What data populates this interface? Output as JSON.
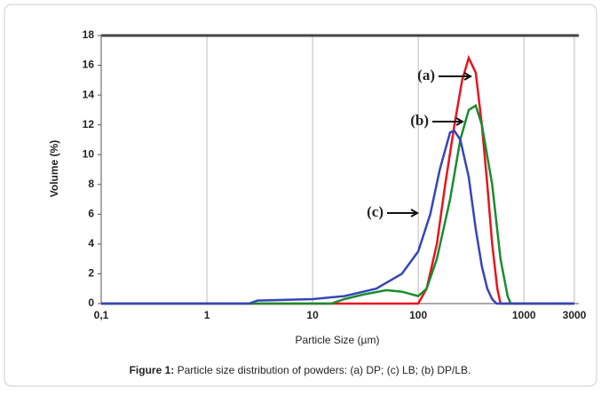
{
  "chart_data": {
    "type": "line",
    "ylabel": "Volume (%)",
    "xlabel": "Particle Size (µm)",
    "caption_label": "Figure 1:",
    "caption": "Particle size distribution of powders: (a) DP; (c) LB; (b) DP/LB.",
    "xscale": "log",
    "xlim": [
      0.1,
      3000
    ],
    "ylim": [
      0,
      18
    ],
    "xticks": [
      {
        "value": 0.1,
        "label": "0,1"
      },
      1,
      10,
      100,
      1000,
      3000
    ],
    "yticks": [
      0,
      2,
      4,
      6,
      8,
      10,
      12,
      14,
      16,
      18
    ],
    "grid": true,
    "series": [
      {
        "name": "(a)",
        "color": "#e8141e",
        "x": [
          0.1,
          100,
          120,
          150,
          180,
          220,
          260,
          300,
          350,
          400,
          450,
          500,
          560,
          600,
          3000
        ],
        "values": [
          0,
          0,
          1,
          4,
          8,
          12,
          15,
          16.5,
          15.5,
          12,
          8,
          4,
          1,
          0,
          0
        ]
      },
      {
        "name": "(b)",
        "color": "#1a8c2e",
        "x": [
          0.1,
          15,
          20,
          30,
          50,
          70,
          100,
          120,
          150,
          200,
          250,
          300,
          350,
          400,
          500,
          600,
          700,
          750,
          3000
        ],
        "values": [
          0,
          0,
          0.3,
          0.6,
          0.9,
          0.8,
          0.5,
          1,
          3,
          7,
          11,
          13,
          13.3,
          12,
          8,
          3,
          0.5,
          0,
          0
        ]
      },
      {
        "name": "(c)",
        "color": "#3545b8",
        "x": [
          0.1,
          2.5,
          3,
          10,
          20,
          40,
          70,
          100,
          130,
          160,
          200,
          220,
          250,
          300,
          350,
          400,
          450,
          500,
          550,
          3000
        ],
        "values": [
          0,
          0,
          0.2,
          0.3,
          0.5,
          1,
          2,
          3.5,
          6,
          9,
          11.5,
          11.6,
          11,
          8.5,
          5,
          2.5,
          1,
          0.3,
          0,
          0
        ]
      }
    ]
  }
}
